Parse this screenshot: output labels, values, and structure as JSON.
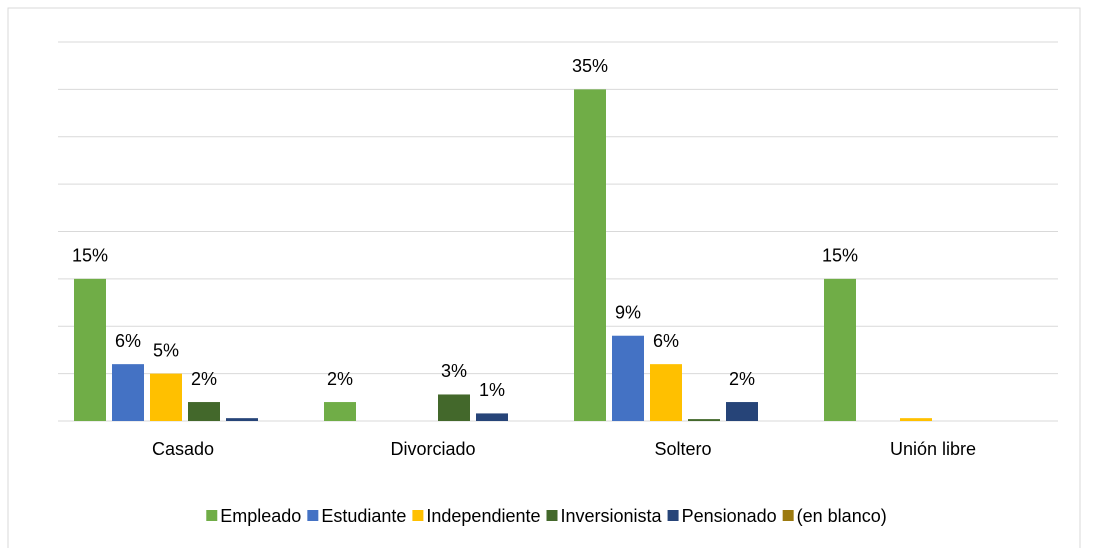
{
  "chart_data": {
    "type": "bar",
    "categories": [
      "Casado",
      "Divorciado",
      "Soltero",
      "Unión libre"
    ],
    "series": [
      {
        "name": "Empleado",
        "color": "#70ad47",
        "values": [
          15,
          2,
          35,
          15
        ],
        "value_labels": [
          "15%",
          "2%",
          "35%",
          "15%"
        ]
      },
      {
        "name": "Estudiante",
        "color": "#4472c4",
        "values": [
          6,
          null,
          9,
          null
        ],
        "value_labels": [
          "6%",
          null,
          "9%",
          null
        ]
      },
      {
        "name": "Independiente",
        "color": "#ffc000",
        "values": [
          5,
          null,
          6,
          0.3
        ],
        "value_labels": [
          "5%",
          null,
          "6%",
          null
        ]
      },
      {
        "name": "Inversionista",
        "color": "#43682b",
        "values": [
          2,
          2.8,
          0.2,
          null
        ],
        "value_labels": [
          "2%",
          "3%",
          null,
          null
        ]
      },
      {
        "name": "Pensionado",
        "color": "#264478",
        "values": [
          0.3,
          0.8,
          2,
          null
        ],
        "value_labels": [
          null,
          "1%",
          "2%",
          null
        ]
      },
      {
        "name": "(en blanco)",
        "color": "#9c7a0f",
        "values": [
          null,
          null,
          null,
          null
        ],
        "value_labels": [
          null,
          null,
          null,
          null
        ]
      }
    ],
    "ylim": [
      0,
      40
    ],
    "yticks": [
      0,
      5,
      10,
      15,
      20,
      25,
      30,
      35,
      40
    ],
    "grid": true,
    "legend": "bottom"
  }
}
